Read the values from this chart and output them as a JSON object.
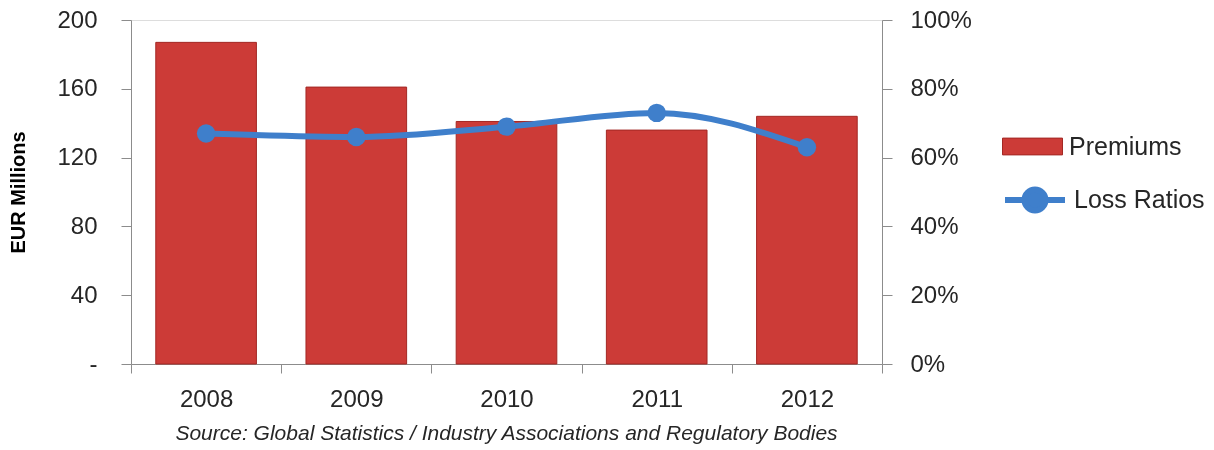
{
  "chart_data": {
    "type": "bar",
    "ylabel": "EUR Millions",
    "categories": [
      "2008",
      "2009",
      "2010",
      "2011",
      "2012"
    ],
    "series": [
      {
        "name": "Premiums",
        "color": "#cc3b37",
        "values": [
          187,
          161,
          141,
          136,
          144
        ]
      },
      {
        "name": "Loss Ratios",
        "type": "line",
        "axis": "y2",
        "color": "#3f7fcb",
        "values": [
          67,
          66,
          69,
          73,
          63
        ]
      }
    ],
    "ylim": [
      0,
      200
    ],
    "yticks": [
      {
        "value": 0,
        "label": "-"
      },
      40,
      80,
      120,
      160,
      200
    ],
    "y2lim": [
      0,
      100
    ],
    "y2ticks": [
      {
        "value": 0,
        "label": "0%"
      },
      {
        "value": 20,
        "label": "20%"
      },
      {
        "value": 40,
        "label": "40%"
      },
      {
        "value": 60,
        "label": "60%"
      },
      {
        "value": 80,
        "label": "80%"
      },
      {
        "value": 100,
        "label": "100%"
      }
    ],
    "marker": "circle",
    "line_style": "solid",
    "legend": "right",
    "grid": false,
    "annotations": [
      "Source: Global Statistics / Industry Associations and Regulatory Bodies"
    ]
  }
}
